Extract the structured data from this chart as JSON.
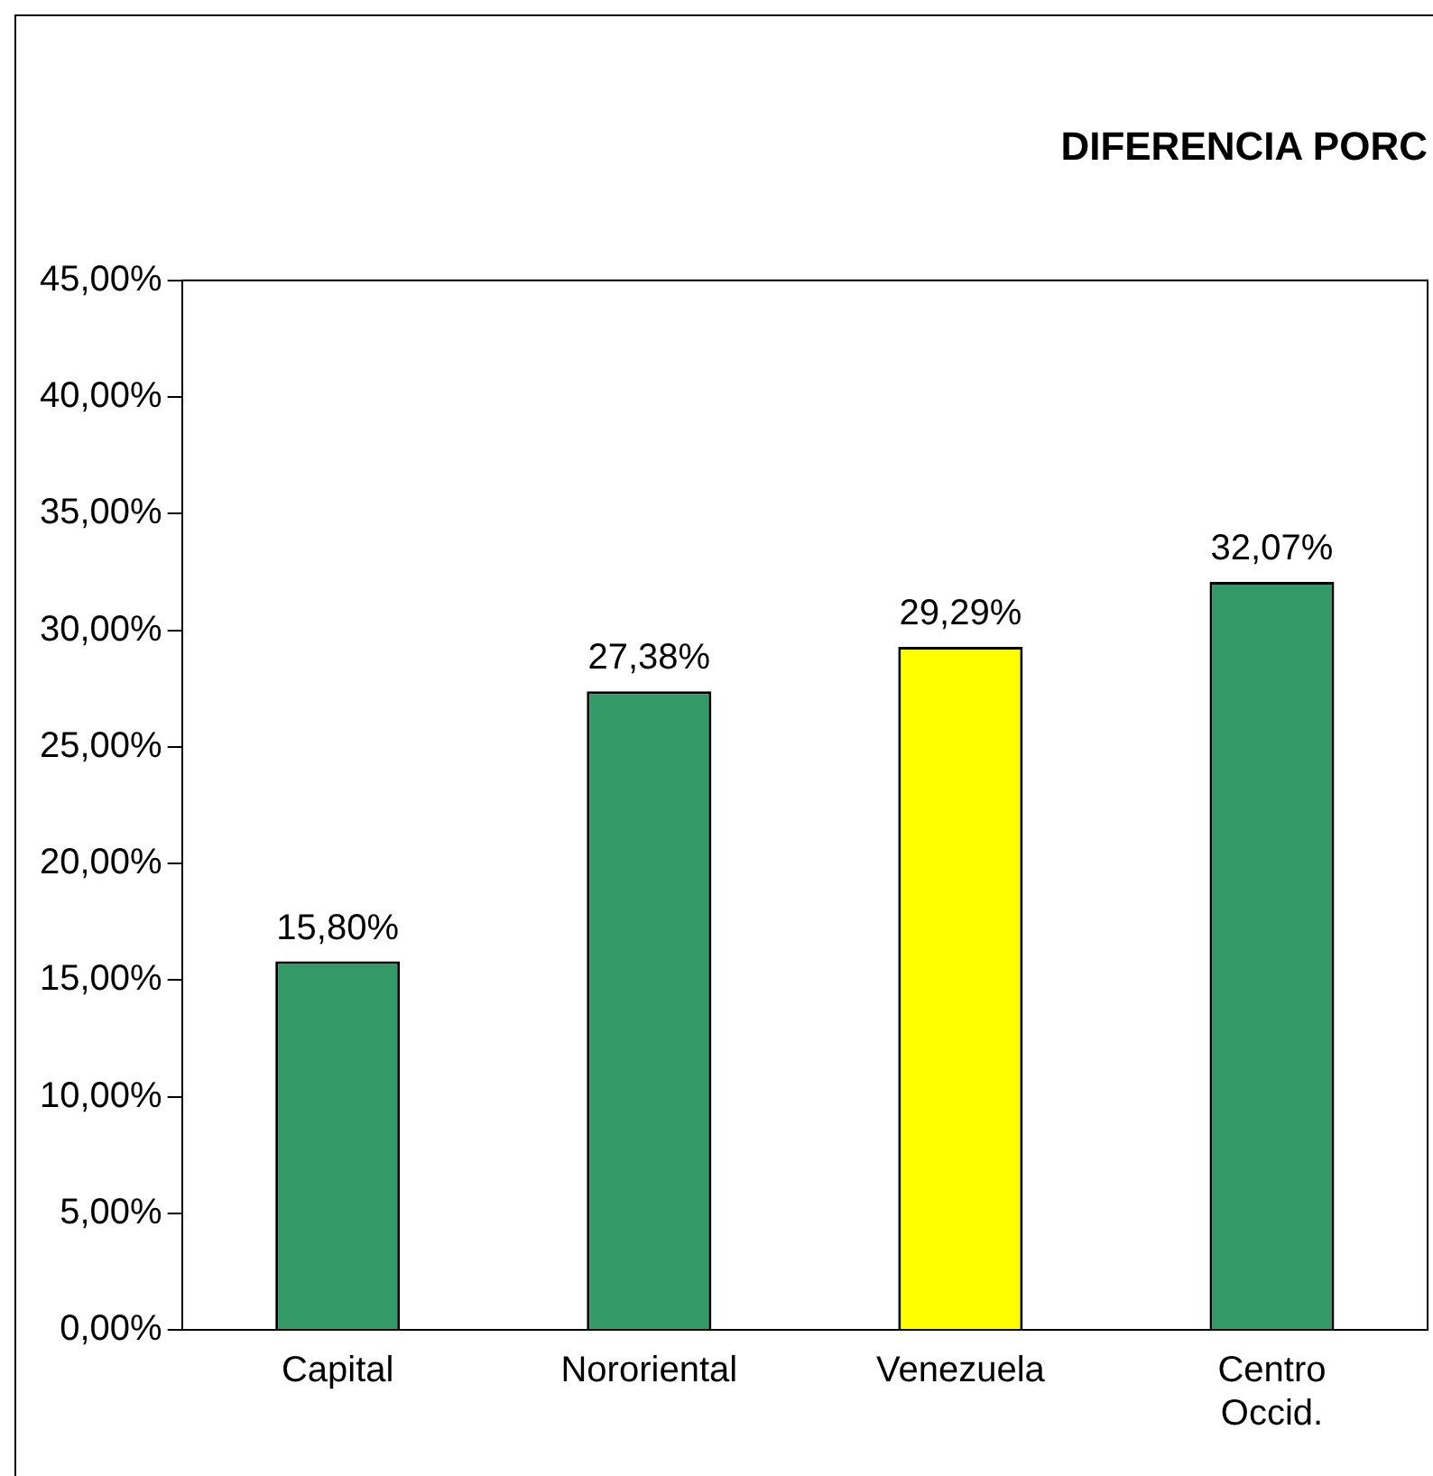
{
  "chart_data": {
    "type": "bar",
    "title": "DIFERENCIA PORC",
    "categories": [
      "Capital",
      "Nororiental",
      "Venezuela",
      "Centro Occid."
    ],
    "values": [
      15.8,
      27.38,
      29.29,
      32.07
    ],
    "colors": [
      "#339966",
      "#339966",
      "#ffff00",
      "#339966"
    ],
    "value_labels": [
      "15,80%",
      "27,38%",
      "29,29%",
      "32,07%"
    ],
    "ylim": [
      0,
      45
    ],
    "yticks": [
      {
        "value": 0,
        "label": "0,00%"
      },
      {
        "value": 5,
        "label": "5,00%"
      },
      {
        "value": 10,
        "label": "10,00%"
      },
      {
        "value": 15,
        "label": "15,00%"
      },
      {
        "value": 20,
        "label": "20,00%"
      },
      {
        "value": 25,
        "label": "25,00%"
      },
      {
        "value": 30,
        "label": "30,00%"
      },
      {
        "value": 35,
        "label": "35,00%"
      },
      {
        "value": 40,
        "label": "40,00%"
      },
      {
        "value": 45,
        "label": "45,00%"
      }
    ],
    "grid": false,
    "legend": false
  }
}
